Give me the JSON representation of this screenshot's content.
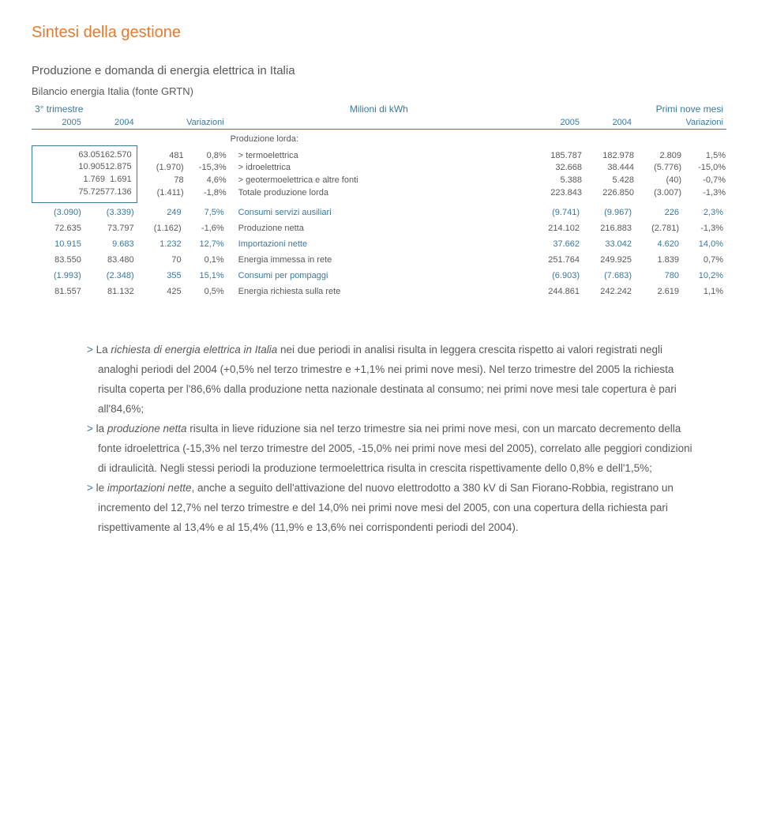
{
  "section_title": "Sintesi della gestione",
  "sub_title": "Produzione e domanda di energia elettrica in Italia",
  "source_line": "Bilancio energia Italia (fonte GRTN)",
  "table": {
    "header": {
      "period_left": "3° trimestre",
      "unit_center": "Milioni di kWh",
      "period_right": "Primi nove mesi",
      "y2005": "2005",
      "y2004": "2004",
      "var": "Variazioni"
    },
    "group_label": "Produzione lorda:",
    "boxed_left": [
      {
        "a": "63.051",
        "b": "62.570"
      },
      {
        "a": "10.905",
        "b": "12.875"
      },
      {
        "a": "1.769",
        "b": "1.691"
      },
      {
        "a": "75.725",
        "b": "77.136"
      }
    ],
    "boxed_right_vars": [
      {
        "c": "481",
        "d": "0,8%"
      },
      {
        "c": "(1.970)",
        "d": "-15,3%"
      },
      {
        "c": "78",
        "d": "4,6%"
      },
      {
        "c": "(1.411)",
        "d": "-1,8%"
      }
    ],
    "boxed_labels": [
      "> termoelettrica",
      "> idroelettrica",
      "> geotermoelettrica e altre fonti",
      "Totale produzione lorda"
    ],
    "boxed_right_block": [
      {
        "e": "185.787",
        "f": "182.978",
        "g": "2.809",
        "h": "1,5%"
      },
      {
        "e": "32.668",
        "f": "38.444",
        "g": "(5.776)",
        "h": "-15,0%"
      },
      {
        "e": "5.388",
        "f": "5.428",
        "g": "(40)",
        "h": "-0,7%"
      },
      {
        "e": "223.843",
        "f": "226.850",
        "g": "(3.007)",
        "h": "-1,3%"
      }
    ],
    "rows": [
      {
        "a": "(3.090)",
        "b": "(3.339)",
        "c": "249",
        "d": "7,5%",
        "label": "Consumi servizi ausiliari",
        "e": "(9.741)",
        "f": "(9.967)",
        "g": "226",
        "h": "2,3%",
        "accent": true
      },
      {
        "a": "72.635",
        "b": "73.797",
        "c": "(1.162)",
        "d": "-1,6%",
        "label": "Produzione netta",
        "e": "214.102",
        "f": "216.883",
        "g": "(2.781)",
        "h": "-1,3%",
        "accent": false
      },
      {
        "a": "10.915",
        "b": "9.683",
        "c": "1.232",
        "d": "12,7%",
        "label": "Importazioni nette",
        "e": "37.662",
        "f": "33.042",
        "g": "4.620",
        "h": "14,0%",
        "accent": true
      },
      {
        "a": "83.550",
        "b": "83.480",
        "c": "70",
        "d": "0,1%",
        "label": "Energia immessa in rete",
        "e": "251.764",
        "f": "249.925",
        "g": "1.839",
        "h": "0,7%",
        "accent": false
      },
      {
        "a": "(1.993)",
        "b": "(2.348)",
        "c": "355",
        "d": "15,1%",
        "label": "Consumi per pompaggi",
        "e": "(6.903)",
        "f": "(7.683)",
        "g": "780",
        "h": "10,2%",
        "accent": true
      },
      {
        "a": "81.557",
        "b": "81.132",
        "c": "425",
        "d": "0,5%",
        "label": "Energia richiesta sulla rete",
        "e": "244.861",
        "f": "242.242",
        "g": "2.619",
        "h": "1,1%",
        "accent": false
      }
    ]
  },
  "notes": {
    "n1": "La <em>richiesta di energia elettrica in Italia</em> nei due periodi in analisi risulta in leggera crescita rispetto ai valori registrati negli analoghi periodi del 2004 (+0,5% nel terzo trimestre e +1,1% nei primi nove mesi). Nel terzo trimestre del 2005 la richiesta risulta coperta per l'86,6% dalla produzione netta nazionale destinata al consumo; nei primi nove mesi tale copertura è pari all'84,6%;",
    "n2": "la <em>produzione netta</em> risulta in lieve riduzione sia nel terzo trimestre sia nei primi nove mesi, con un marcato decremento della fonte idroelettrica (-15,3% nel terzo trimestre del 2005, -15,0% nei primi nove mesi del 2005), correlato alle peggiori condizioni di idraulicità. Negli stessi periodi la produzione termoelettrica risulta in crescita rispettivamente dello 0,8% e dell'1,5%;",
    "n3": "le <em>importazioni nette</em>, anche a seguito dell'attivazione del nuovo elettrodotto a 380 kV di San Fiorano-Robbia, registrano un incremento del 12,7% nel terzo trimestre e del 14,0% nei primi nove mesi del 2005, con una copertura della richiesta pari rispettivamente al 13,4% e al 15,4% (11,9% e 13,6% nei corrispondenti periodi del 2004)."
  },
  "colors": {
    "accent": "#3a7a9c",
    "orange": "#e67a2e",
    "text": "#595959",
    "bg": "#ffffff"
  }
}
